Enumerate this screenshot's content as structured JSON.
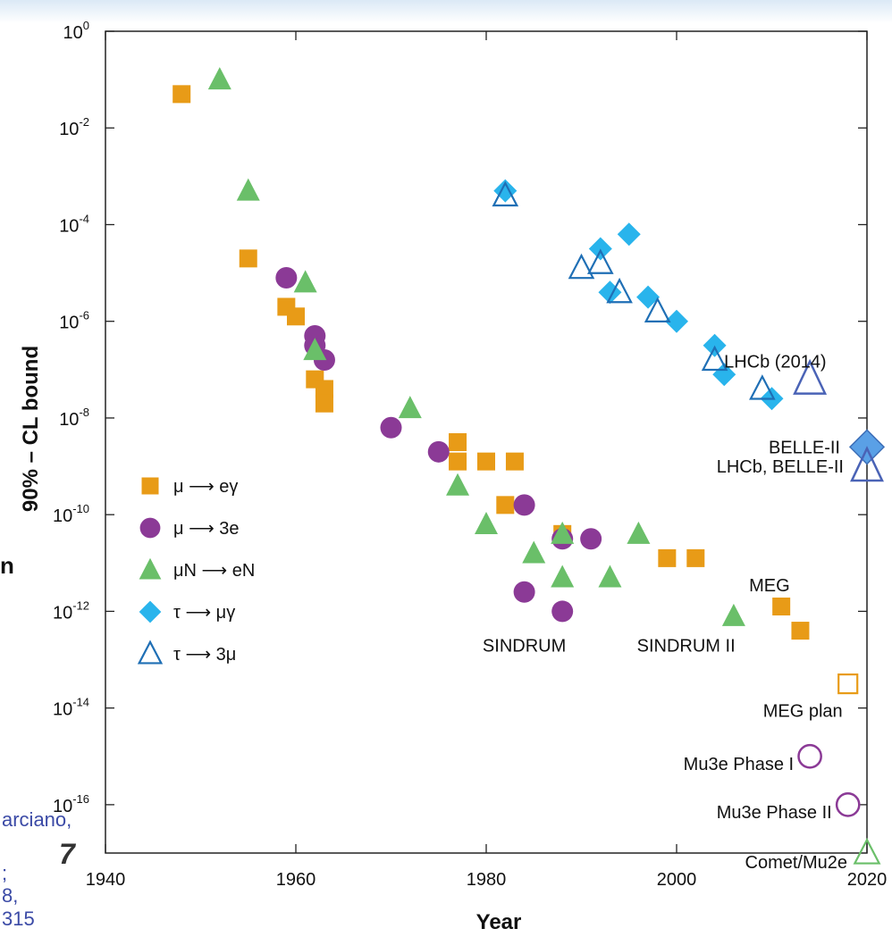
{
  "colors": {
    "mu_egamma": "#e89b17",
    "mu_3e": "#8b3a96",
    "muN_eN": "#6abf69",
    "tau_mugamma": "#29b4ec",
    "tau_3mu": "#1f6fb5",
    "slide_text": "#3b4aa6"
  },
  "slide_fragments": {
    "left_char": "n",
    "ref_line1": "arciano,",
    "ref_line2": "8, 315",
    "ref_semicolon": ";",
    "slide_number": "7"
  },
  "chart_data": {
    "type": "scatter",
    "xlabel": "Year",
    "ylabel": "90% – CL bound",
    "xlim": [
      1940,
      2020
    ],
    "ylim_log10": [
      -17,
      0
    ],
    "yscale": "log",
    "x_ticks": [
      "1940",
      "1960",
      "1980",
      "2000",
      "2020"
    ],
    "y_ticks": [
      {
        "base": "10",
        "exp": "0"
      },
      {
        "base": "10",
        "exp": "-2"
      },
      {
        "base": "10",
        "exp": "-4"
      },
      {
        "base": "10",
        "exp": "-6"
      },
      {
        "base": "10",
        "exp": "-8"
      },
      {
        "base": "10",
        "exp": "-10"
      },
      {
        "base": "10",
        "exp": "-12"
      },
      {
        "base": "10",
        "exp": "-14"
      },
      {
        "base": "10",
        "exp": "-16"
      }
    ],
    "legend_position": "left-middle",
    "legend": [
      {
        "label": "μ ⟶ eγ",
        "marker": "square",
        "color_key": "mu_egamma"
      },
      {
        "label": "μ ⟶ 3e",
        "marker": "circle",
        "color_key": "mu_3e"
      },
      {
        "label": "μN ⟶ eN",
        "marker": "triangle",
        "color_key": "muN_eN"
      },
      {
        "label": "τ ⟶ μγ",
        "marker": "diamond",
        "color_key": "tau_mugamma"
      },
      {
        "label": "τ ⟶ 3μ",
        "marker": "triangle-open",
        "color_key": "tau_3mu"
      }
    ],
    "series": [
      {
        "name": "μ ⟶ eγ",
        "marker": "square",
        "color_key": "mu_egamma",
        "points": [
          [
            1948,
            -1.3
          ],
          [
            1955,
            -4.7
          ],
          [
            1959,
            -5.7
          ],
          [
            1960,
            -5.9
          ],
          [
            1962,
            -7.2
          ],
          [
            1963,
            -7.4
          ],
          [
            1963,
            -7.7
          ],
          [
            1977,
            -8.5
          ],
          [
            1977,
            -8.9
          ],
          [
            1980,
            -8.9
          ],
          [
            1982,
            -9.8
          ],
          [
            1983,
            -8.9
          ],
          [
            1988,
            -10.4
          ],
          [
            1999,
            -10.9
          ],
          [
            2002,
            -10.9
          ],
          [
            2011,
            -11.9
          ],
          [
            2013,
            -12.4
          ]
        ]
      },
      {
        "name": "μ ⟶ 3e",
        "marker": "circle",
        "color_key": "mu_3e",
        "points": [
          [
            1959,
            -5.1
          ],
          [
            1962,
            -6.3
          ],
          [
            1962,
            -6.5
          ],
          [
            1963,
            -6.8
          ],
          [
            1970,
            -8.2
          ],
          [
            1975,
            -8.7
          ],
          [
            1984,
            -9.8
          ],
          [
            1984,
            -11.6
          ],
          [
            1988,
            -10.5
          ],
          [
            1988,
            -12.0
          ],
          [
            1991,
            -10.5
          ]
        ]
      },
      {
        "name": "μN ⟶ eN",
        "marker": "triangle",
        "color_key": "muN_eN",
        "points": [
          [
            1952,
            -1.0
          ],
          [
            1955,
            -3.3
          ],
          [
            1961,
            -5.2
          ],
          [
            1962,
            -6.6
          ],
          [
            1972,
            -7.8
          ],
          [
            1977,
            -9.4
          ],
          [
            1980,
            -10.2
          ],
          [
            1985,
            -10.8
          ],
          [
            1988,
            -10.4
          ],
          [
            1988,
            -11.3
          ],
          [
            1993,
            -11.3
          ],
          [
            1996,
            -10.4
          ],
          [
            2006,
            -12.1
          ]
        ]
      },
      {
        "name": "τ ⟶ μγ",
        "marker": "diamond",
        "color_key": "tau_mugamma",
        "points": [
          [
            1982,
            -3.3
          ],
          [
            1992,
            -4.5
          ],
          [
            1995,
            -4.2
          ],
          [
            1993,
            -5.4
          ],
          [
            1997,
            -5.5
          ],
          [
            2000,
            -6.0
          ],
          [
            2004,
            -6.5
          ],
          [
            2005,
            -7.1
          ],
          [
            2010,
            -7.6
          ]
        ]
      },
      {
        "name": "τ ⟶ 3μ",
        "marker": "triangle-open",
        "color_key": "tau_3mu",
        "points": [
          [
            1982,
            -3.4
          ],
          [
            1990,
            -4.9
          ],
          [
            1992,
            -4.8
          ],
          [
            1994,
            -5.4
          ],
          [
            1998,
            -5.8
          ],
          [
            2004,
            -6.8
          ],
          [
            2009,
            -7.4
          ]
        ]
      }
    ],
    "projections": [
      {
        "label": "LHCb (2014)",
        "x": 2014,
        "y": -7.2,
        "marker": "triangle-open-large",
        "color": "#4a63b6"
      },
      {
        "label": "BELLE-II",
        "x": 2020,
        "y": -8.6,
        "marker": "diamond-large",
        "color": "#5aa0e6"
      },
      {
        "label": "LHCb, BELLE-II",
        "x": 2020,
        "y": -9.0,
        "marker": "triangle-open-large",
        "color": "#4a63b6"
      },
      {
        "label": "MEG",
        "x": 2011,
        "y": -11.9,
        "marker": "none"
      },
      {
        "label": "MEG plan",
        "x": 2018,
        "y": -13.5,
        "marker": "square-open",
        "color": "#e89b17"
      },
      {
        "label": "Mu3e Phase I",
        "x": 2014,
        "y": -15.0,
        "marker": "circle-open",
        "color": "#8b3a96"
      },
      {
        "label": "Mu3e Phase II",
        "x": 2018,
        "y": -16.0,
        "marker": "circle-open",
        "color": "#8b3a96"
      },
      {
        "label": "Comet/Mu2e",
        "x": 2020,
        "y": -17.0,
        "marker": "triangle-open",
        "color": "#6abf69"
      }
    ],
    "annotations": [
      {
        "text": "SINDRUM",
        "x": 1984,
        "y": -12.7
      },
      {
        "text": "SINDRUM II",
        "x": 2001,
        "y": -12.7
      }
    ]
  }
}
